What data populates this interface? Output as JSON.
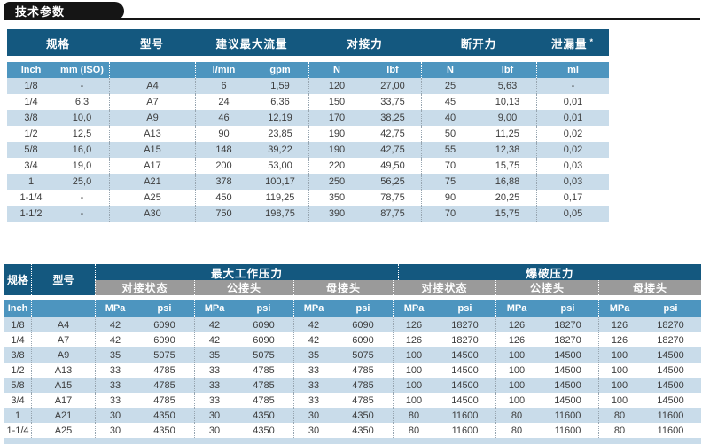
{
  "title": {
    "tab_label": "技术参数"
  },
  "colors": {
    "header_dark_blue": "#14587f",
    "subheader_blue": "#4d95bf",
    "row_stripe_blue": "#c9dcea",
    "section_gray": "#9a9a9a",
    "title_black": "#151515"
  },
  "table1": {
    "header_groups": [
      {
        "label": "规格"
      },
      {
        "label": "型号"
      },
      {
        "label": "建议最大流量"
      },
      {
        "label": "对接力"
      },
      {
        "label": "断开力"
      },
      {
        "label": "泄漏量",
        "footnote_marker": "*"
      }
    ],
    "subheader": [
      "Inch",
      "mm (ISO)",
      "",
      "l/min",
      "gpm",
      "N",
      "lbf",
      "N",
      "lbf",
      "ml"
    ],
    "rows": [
      [
        "1/8",
        "-",
        "A4",
        "6",
        "1,59",
        "120",
        "27,00",
        "25",
        "5,63",
        "-"
      ],
      [
        "1/4",
        "6,3",
        "A7",
        "24",
        "6,36",
        "150",
        "33,75",
        "45",
        "10,13",
        "0,01"
      ],
      [
        "3/8",
        "10,0",
        "A9",
        "46",
        "12,19",
        "170",
        "38,25",
        "40",
        "9,00",
        "0,01"
      ],
      [
        "1/2",
        "12,5",
        "A13",
        "90",
        "23,85",
        "190",
        "42,75",
        "50",
        "11,25",
        "0,02"
      ],
      [
        "5/8",
        "16,0",
        "A15",
        "148",
        "39,22",
        "190",
        "42,75",
        "55",
        "12,38",
        "0,02"
      ],
      [
        "3/4",
        "19,0",
        "A17",
        "200",
        "53,00",
        "220",
        "49,50",
        "70",
        "15,75",
        "0,03"
      ],
      [
        "1",
        "25,0",
        "A21",
        "378",
        "100,17",
        "250",
        "56,25",
        "75",
        "16,88",
        "0,03"
      ],
      [
        "1-1/4",
        "-",
        "A25",
        "450",
        "119,25",
        "350",
        "78,75",
        "90",
        "20,25",
        "0,17"
      ],
      [
        "1-1/2",
        "-",
        "A30",
        "750",
        "198,75",
        "390",
        "87,75",
        "70",
        "15,75",
        "0,05"
      ]
    ]
  },
  "table2": {
    "spec_label": "规格",
    "model_label": "型号",
    "work_pressure_label": "最大工作压力",
    "burst_pressure_label": "爆破压力",
    "sections": [
      "对接状态",
      "公接头",
      "母接头",
      "对接状态",
      "公接头",
      "母接头"
    ],
    "inch_label": "Inch",
    "units": {
      "mpa": "MPa",
      "psi": "psi"
    },
    "rows": [
      [
        "1/8",
        "A4",
        "42",
        "6090",
        "42",
        "6090",
        "42",
        "6090",
        "126",
        "18270",
        "126",
        "18270",
        "126",
        "18270"
      ],
      [
        "1/4",
        "A7",
        "42",
        "6090",
        "42",
        "6090",
        "42",
        "6090",
        "126",
        "18270",
        "126",
        "18270",
        "126",
        "18270"
      ],
      [
        "3/8",
        "A9",
        "35",
        "5075",
        "35",
        "5075",
        "35",
        "5075",
        "100",
        "14500",
        "100",
        "14500",
        "100",
        "14500"
      ],
      [
        "1/2",
        "A13",
        "33",
        "4785",
        "33",
        "4785",
        "33",
        "4785",
        "100",
        "14500",
        "100",
        "14500",
        "100",
        "14500"
      ],
      [
        "5/8",
        "A15",
        "33",
        "4785",
        "33",
        "4785",
        "33",
        "4785",
        "100",
        "14500",
        "100",
        "14500",
        "100",
        "14500"
      ],
      [
        "3/4",
        "A17",
        "33",
        "4785",
        "33",
        "4785",
        "33",
        "4785",
        "100",
        "14500",
        "100",
        "14500",
        "100",
        "14500"
      ],
      [
        "1",
        "A21",
        "30",
        "4350",
        "30",
        "4350",
        "30",
        "4350",
        "80",
        "11600",
        "80",
        "11600",
        "80",
        "11600"
      ],
      [
        "1-1/4",
        "A25",
        "30",
        "4350",
        "30",
        "4350",
        "30",
        "4350",
        "80",
        "11600",
        "80",
        "11600",
        "80",
        "11600"
      ]
    ]
  }
}
